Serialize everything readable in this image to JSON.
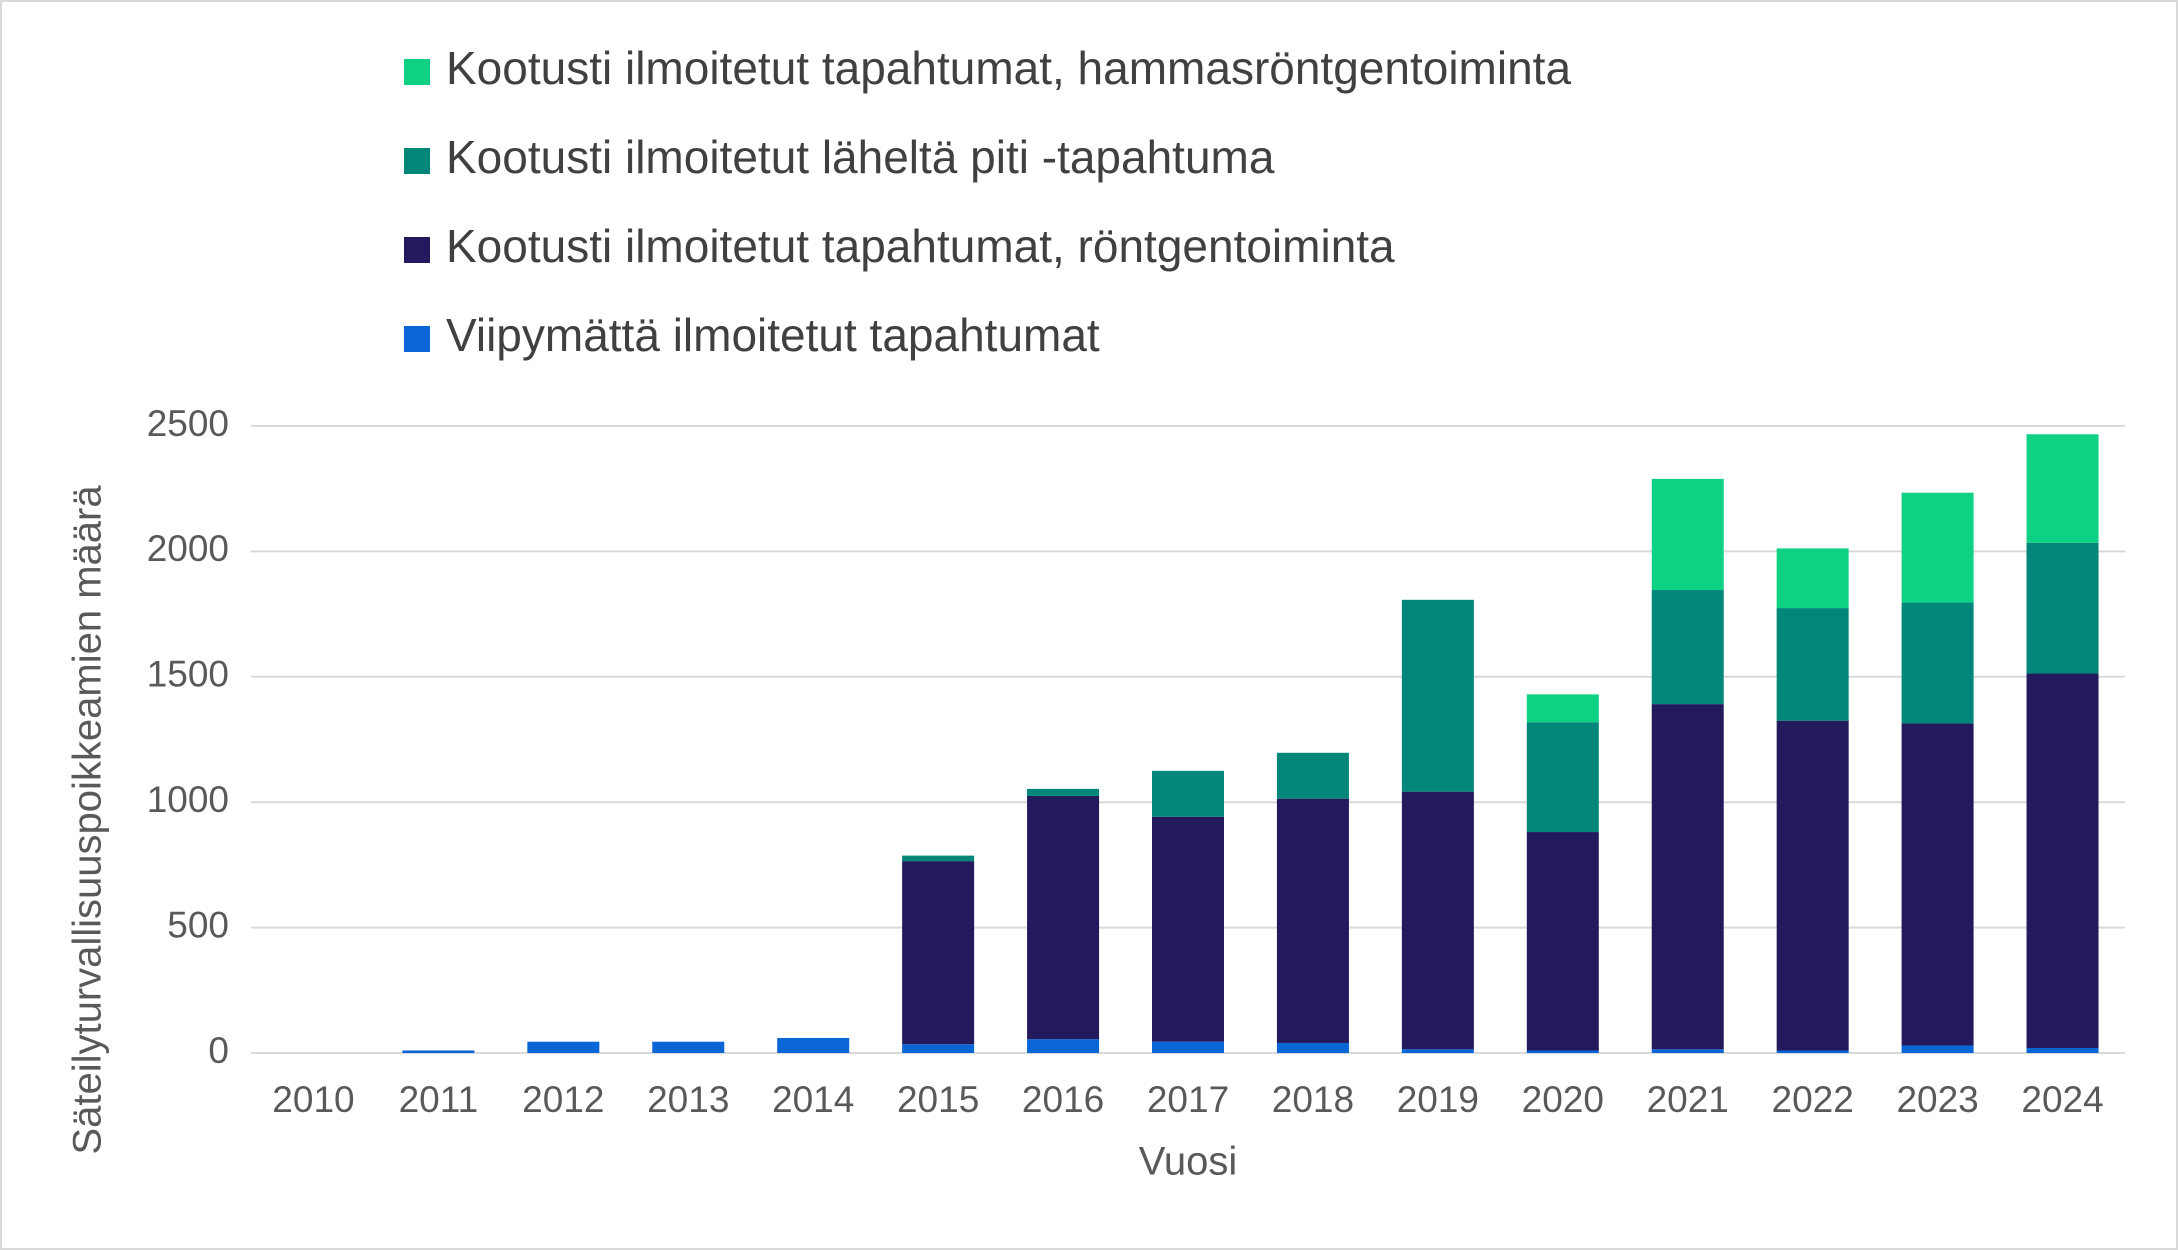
{
  "chart_data": {
    "type": "stacked_bar",
    "x_label": "Vuosi",
    "y_label": "Säteilyturvallisuuspoikkeamien määrä",
    "categories": [
      "2010",
      "2011",
      "2012",
      "2013",
      "2014",
      "2015",
      "2016",
      "2017",
      "2018",
      "2019",
      "2020",
      "2021",
      "2022",
      "2023",
      "2024"
    ],
    "series": [
      {
        "name": "Viipymättä ilmoitetut tapahtumat",
        "color": "#0a66d6",
        "values": [
          0,
          10,
          45,
          45,
          60,
          35,
          55,
          45,
          40,
          15,
          10,
          15,
          10,
          30,
          20
        ]
      },
      {
        "name": "Kootusti ilmoitetut tapahtumat, röntgentoiminta",
        "color": "#221a5c",
        "values": [
          0,
          0,
          0,
          0,
          0,
          730,
          970,
          897,
          974,
          1027,
          871,
          1376,
          1315,
          1284,
          1493
        ]
      },
      {
        "name": "Kootusti ilmoitetut läheltä piti -tapahtuma",
        "color": "#00877a",
        "values": [
          0,
          0,
          0,
          0,
          0,
          22,
          28,
          183,
          183,
          765,
          438,
          455,
          449,
          482,
          521
        ]
      },
      {
        "name": "Kootusti ilmoitetut tapahtumat, hammasröntgentoiminta",
        "color": "#0fd184",
        "values": [
          0,
          0,
          0,
          0,
          0,
          0,
          0,
          0,
          0,
          0,
          111,
          443,
          238,
          438,
          433
        ]
      }
    ],
    "ylim": [
      0,
      2500
    ],
    "yticks": [
      0,
      500,
      1000,
      1500,
      2000,
      2500
    ],
    "grid": true,
    "legend": "top"
  }
}
